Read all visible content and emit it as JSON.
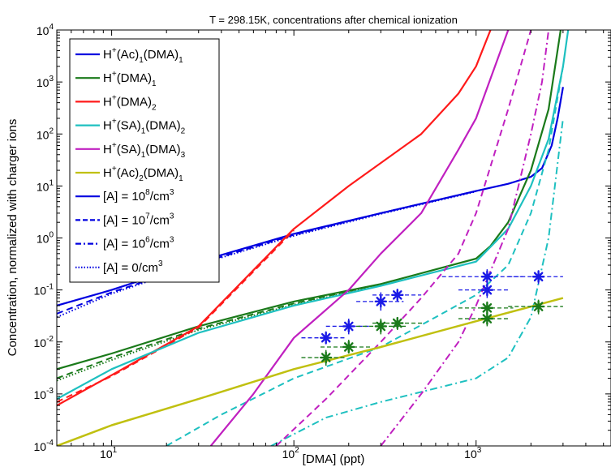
{
  "chart_data": {
    "type": "line",
    "title": "T = 298.15K, concentrations after chemical ionization",
    "xlabel": "[DMA] (ppt)",
    "ylabel": "Concentration, normalized with charger ions",
    "xscale": "log",
    "yscale": "log",
    "xlim": [
      5,
      5500
    ],
    "ylim": [
      0.0001,
      10000
    ],
    "x_ticks": [
      {
        "base": "10",
        "exp": "1",
        "value": 10
      },
      {
        "base": "10",
        "exp": "2",
        "value": 100
      },
      {
        "base": "10",
        "exp": "3",
        "value": 1000
      }
    ],
    "y_ticks": [
      {
        "base": "10",
        "exp": "-4",
        "value": 0.0001
      },
      {
        "base": "10",
        "exp": "-3",
        "value": 0.001
      },
      {
        "base": "10",
        "exp": "-2",
        "value": 0.01
      },
      {
        "base": "10",
        "exp": "-1",
        "value": 0.1
      },
      {
        "base": "10",
        "exp": "0",
        "value": 1
      },
      {
        "base": "10",
        "exp": "1",
        "value": 10
      },
      {
        "base": "10",
        "exp": "2",
        "value": 100
      },
      {
        "base": "10",
        "exp": "3",
        "value": 1000
      },
      {
        "base": "10",
        "exp": "4",
        "value": 10000
      }
    ],
    "grid": false,
    "legend_position": "top-left",
    "legend": [
      {
        "segments": [
          {
            "t": "H"
          },
          {
            "t": "+",
            "sup": true
          },
          {
            "t": "(Ac)"
          },
          {
            "t": "1",
            "sub": true
          },
          {
            "t": "(DMA)"
          },
          {
            "t": "1",
            "sub": true
          }
        ],
        "color": "#0000e0",
        "dash": "solid"
      },
      {
        "segments": [
          {
            "t": "H"
          },
          {
            "t": "+",
            "sup": true
          },
          {
            "t": "(DMA)"
          },
          {
            "t": "1",
            "sub": true
          }
        ],
        "color": "#1a7a1a",
        "dash": "solid"
      },
      {
        "segments": [
          {
            "t": "H"
          },
          {
            "t": "+",
            "sup": true
          },
          {
            "t": "(DMA)"
          },
          {
            "t": "2",
            "sub": true
          }
        ],
        "color": "#ff1a1a",
        "dash": "solid"
      },
      {
        "segments": [
          {
            "t": "H"
          },
          {
            "t": "+",
            "sup": true
          },
          {
            "t": "(SA)"
          },
          {
            "t": "1",
            "sub": true
          },
          {
            "t": "(DMA)"
          },
          {
            "t": "2",
            "sub": true
          }
        ],
        "color": "#1ec0c0",
        "dash": "solid"
      },
      {
        "segments": [
          {
            "t": "H"
          },
          {
            "t": "+",
            "sup": true
          },
          {
            "t": "(SA)"
          },
          {
            "t": "1",
            "sub": true
          },
          {
            "t": "(DMA)"
          },
          {
            "t": "3",
            "sub": true
          }
        ],
        "color": "#c020c0",
        "dash": "solid"
      },
      {
        "segments": [
          {
            "t": "H"
          },
          {
            "t": "+",
            "sup": true
          },
          {
            "t": "(Ac)"
          },
          {
            "t": "2",
            "sub": true
          },
          {
            "t": "(DMA)"
          },
          {
            "t": "1",
            "sub": true
          }
        ],
        "color": "#c0c010",
        "dash": "solid"
      },
      {
        "segments": [
          {
            "t": "[A] = 10"
          },
          {
            "t": "8",
            "sup": true
          },
          {
            "t": "/cm"
          },
          {
            "t": "3",
            "sup": true
          }
        ],
        "color": "#0000e0",
        "dash": "solid"
      },
      {
        "segments": [
          {
            "t": "[A] = 10"
          },
          {
            "t": "7",
            "sup": true
          },
          {
            "t": "/cm"
          },
          {
            "t": "3",
            "sup": true
          }
        ],
        "color": "#0000e0",
        "dash": "dashed"
      },
      {
        "segments": [
          {
            "t": "[A] = 10"
          },
          {
            "t": "6",
            "sup": true
          },
          {
            "t": "/cm"
          },
          {
            "t": "3",
            "sup": true
          }
        ],
        "color": "#0000e0",
        "dashdot": true,
        "dash": "dash-dot"
      },
      {
        "segments": [
          {
            "t": "[A] = 0/cm"
          },
          {
            "t": "3",
            "sup": true
          }
        ],
        "color": "#0000e0",
        "dash": "dotted"
      }
    ],
    "series": [
      {
        "species": "H+(Ac)1(DMA)1",
        "acid": "1e8",
        "color": "#0000e0",
        "dash": "solid",
        "width": 2.2,
        "points": [
          [
            5,
            0.05
          ],
          [
            10,
            0.1
          ],
          [
            30,
            0.35
          ],
          [
            100,
            1.2
          ],
          [
            300,
            3
          ],
          [
            1000,
            8
          ],
          [
            1500,
            11
          ],
          [
            2000,
            15
          ],
          [
            2300,
            22
          ],
          [
            2600,
            60
          ],
          [
            2800,
            200
          ],
          [
            3000,
            800
          ]
        ]
      },
      {
        "species": "H+(Ac)1(DMA)1",
        "acid": "1e7",
        "color": "#0000e0",
        "dash": "dashed",
        "width": 2,
        "points": [
          [
            5,
            0.035
          ],
          [
            10,
            0.09
          ],
          [
            30,
            0.32
          ],
          [
            100,
            1.15
          ],
          [
            300,
            3
          ],
          [
            1000,
            8
          ]
        ]
      },
      {
        "species": "H+(Ac)1(DMA)1",
        "acid": "0",
        "color": "#0000e0",
        "dash": "dotted",
        "width": 2,
        "points": [
          [
            5,
            0.03
          ],
          [
            10,
            0.085
          ],
          [
            30,
            0.31
          ],
          [
            100,
            1.1
          ],
          [
            300,
            2.9
          ],
          [
            1000,
            7.8
          ]
        ]
      },
      {
        "species": "H+(DMA)1",
        "acid": "1e8",
        "color": "#1a7a1a",
        "dash": "solid",
        "width": 2.2,
        "points": [
          [
            5,
            0.003
          ],
          [
            10,
            0.006
          ],
          [
            30,
            0.02
          ],
          [
            100,
            0.06
          ],
          [
            300,
            0.13
          ],
          [
            1000,
            0.4
          ],
          [
            1200,
            0.7
          ],
          [
            1500,
            2
          ],
          [
            2000,
            20
          ],
          [
            2500,
            300
          ],
          [
            3000,
            20000
          ]
        ]
      },
      {
        "species": "H+(DMA)1",
        "acid": "1e7",
        "color": "#1a7a1a",
        "dash": "dashed",
        "width": 2,
        "points": [
          [
            5,
            0.002
          ],
          [
            10,
            0.005
          ],
          [
            30,
            0.018
          ],
          [
            100,
            0.055
          ],
          [
            300,
            0.13
          ]
        ]
      },
      {
        "species": "H+(DMA)1",
        "acid": "0",
        "color": "#1a7a1a",
        "dash": "dotted",
        "width": 2,
        "points": [
          [
            5,
            0.0018
          ],
          [
            10,
            0.0045
          ],
          [
            30,
            0.017
          ],
          [
            100,
            0.052
          ],
          [
            300,
            0.125
          ]
        ]
      },
      {
        "species": "H+(DMA)2",
        "acid": "1e8",
        "color": "#ff1a1a",
        "dash": "solid",
        "width": 2.2,
        "points": [
          [
            5,
            0.0006
          ],
          [
            10,
            0.0023
          ],
          [
            30,
            0.02
          ],
          [
            100,
            1.5
          ],
          [
            200,
            10
          ],
          [
            500,
            100
          ],
          [
            800,
            600
          ],
          [
            1000,
            2000
          ],
          [
            1200,
            10000
          ]
        ]
      },
      {
        "species": "H+(DMA)2",
        "acid": "1e7",
        "color": "#ff1a1a",
        "dash": "dashed",
        "width": 2,
        "points": [
          [
            5,
            0.0007
          ],
          [
            10,
            0.0022
          ],
          [
            30,
            0.019
          ],
          [
            100,
            1.4
          ]
        ]
      },
      {
        "species": "H+(SA)1(DMA)2",
        "acid": "1e8",
        "color": "#1ec0c0",
        "dash": "solid",
        "width": 2.2,
        "points": [
          [
            5,
            0.0008
          ],
          [
            10,
            0.003
          ],
          [
            30,
            0.015
          ],
          [
            100,
            0.05
          ],
          [
            300,
            0.12
          ],
          [
            1000,
            0.35
          ],
          [
            1500,
            1.5
          ],
          [
            2000,
            10
          ],
          [
            2500,
            80
          ],
          [
            3000,
            2000
          ],
          [
            3200,
            10000
          ]
        ]
      },
      {
        "species": "H+(SA)1(DMA)2",
        "acid": "1e7",
        "color": "#1ec0c0",
        "dash": "dashed",
        "width": 2,
        "points": [
          [
            20,
            0.0001
          ],
          [
            40,
            0.0004
          ],
          [
            100,
            0.002
          ],
          [
            300,
            0.008
          ],
          [
            600,
            0.03
          ],
          [
            1000,
            0.08
          ],
          [
            1500,
            0.3
          ],
          [
            2000,
            3
          ],
          [
            2500,
            50
          ],
          [
            3000,
            2000
          ]
        ]
      },
      {
        "species": "H+(SA)1(DMA)2",
        "acid": "1e6",
        "color": "#1ec0c0",
        "dash": "dash-dot",
        "width": 2,
        "points": [
          [
            75,
            0.0001
          ],
          [
            150,
            0.00035
          ],
          [
            300,
            0.0007
          ],
          [
            1000,
            0.002
          ],
          [
            1500,
            0.005
          ],
          [
            2000,
            0.03
          ],
          [
            2500,
            1
          ],
          [
            3000,
            200
          ]
        ]
      },
      {
        "species": "H+(SA)1(DMA)3",
        "acid": "1e8",
        "color": "#c020c0",
        "dash": "solid",
        "width": 2.2,
        "points": [
          [
            35,
            0.0001
          ],
          [
            60,
            0.001
          ],
          [
            100,
            0.012
          ],
          [
            200,
            0.1
          ],
          [
            300,
            0.5
          ],
          [
            500,
            3
          ],
          [
            800,
            50
          ],
          [
            1000,
            200
          ],
          [
            1500,
            10000
          ]
        ]
      },
      {
        "species": "H+(SA)1(DMA)3",
        "acid": "1e7",
        "color": "#c020c0",
        "dash": "dashed",
        "width": 2,
        "points": [
          [
            80,
            0.0001
          ],
          [
            150,
            0.0008
          ],
          [
            300,
            0.01
          ],
          [
            500,
            0.07
          ],
          [
            800,
            0.5
          ],
          [
            1000,
            3
          ],
          [
            1500,
            300
          ],
          [
            2000,
            10000
          ]
        ]
      },
      {
        "species": "H+(SA)1(DMA)3",
        "acid": "1e6",
        "color": "#c020c0",
        "dash": "dash-dot",
        "width": 2,
        "points": [
          [
            300,
            0.0001
          ],
          [
            500,
            0.001
          ],
          [
            800,
            0.01
          ],
          [
            1000,
            0.05
          ],
          [
            1500,
            1.5
          ],
          [
            2000,
            100
          ],
          [
            2300,
            1000
          ],
          [
            2500,
            10000
          ]
        ]
      },
      {
        "species": "H+(Ac)2(DMA)1",
        "acid": "1e8",
        "color": "#c0c010",
        "dash": "solid",
        "width": 2.5,
        "points": [
          [
            5,
            0.0001
          ],
          [
            10,
            0.00025
          ],
          [
            30,
            0.0008
          ],
          [
            100,
            0.003
          ],
          [
            300,
            0.008
          ],
          [
            1000,
            0.025
          ],
          [
            3000,
            0.07
          ]
        ]
      }
    ],
    "measurements": [
      {
        "group": "blue",
        "color": "#1a1ae6",
        "points": [
          {
            "x": 150,
            "y": 0.012,
            "xerr": [
              110,
              190
            ],
            "yerr": [
              0.009,
              0.016
            ]
          },
          {
            "x": 200,
            "y": 0.02,
            "xerr": [
              150,
              260
            ],
            "yerr": [
              0.014,
              0.028
            ]
          },
          {
            "x": 300,
            "y": 0.06,
            "xerr": [
              220,
              400
            ],
            "yerr": [
              0.04,
              0.09
            ]
          },
          {
            "x": 370,
            "y": 0.08,
            "xerr": [
              270,
              500
            ],
            "yerr": [
              0.06,
              0.1
            ]
          },
          {
            "x": 1150,
            "y": 0.1,
            "xerr": [
              800,
              1500
            ],
            "yerr": [
              0.07,
              0.14
            ]
          },
          {
            "x": 1150,
            "y": 0.18,
            "xerr": [
              650,
              1800
            ],
            "yerr": [
              0.13,
              0.25
            ]
          },
          {
            "x": 2200,
            "y": 0.18,
            "xerr": [
              1500,
              3000
            ],
            "yerr": [
              0.13,
              0.24
            ]
          }
        ]
      },
      {
        "group": "green",
        "color": "#1a7a1a",
        "points": [
          {
            "x": 150,
            "y": 0.005,
            "xerr": [
              110,
              190
            ],
            "yerr": [
              0.0035,
              0.007
            ]
          },
          {
            "x": 200,
            "y": 0.008,
            "xerr": [
              140,
              270
            ],
            "yerr": [
              0.006,
              0.011
            ]
          },
          {
            "x": 300,
            "y": 0.02,
            "xerr": [
              220,
              420
            ],
            "yerr": [
              0.014,
              0.028
            ]
          },
          {
            "x": 370,
            "y": 0.023,
            "xerr": [
              270,
              520
            ],
            "yerr": [
              0.017,
              0.03
            ]
          },
          {
            "x": 1150,
            "y": 0.028,
            "xerr": [
              800,
              1500
            ],
            "yerr": [
              0.02,
              0.038
            ]
          },
          {
            "x": 1150,
            "y": 0.045,
            "xerr": [
              800,
              1600
            ],
            "yerr": [
              0.032,
              0.06
            ]
          },
          {
            "x": 2200,
            "y": 0.048,
            "xerr": [
              1500,
              3000
            ],
            "yerr": [
              0.034,
              0.065
            ]
          }
        ]
      }
    ]
  }
}
